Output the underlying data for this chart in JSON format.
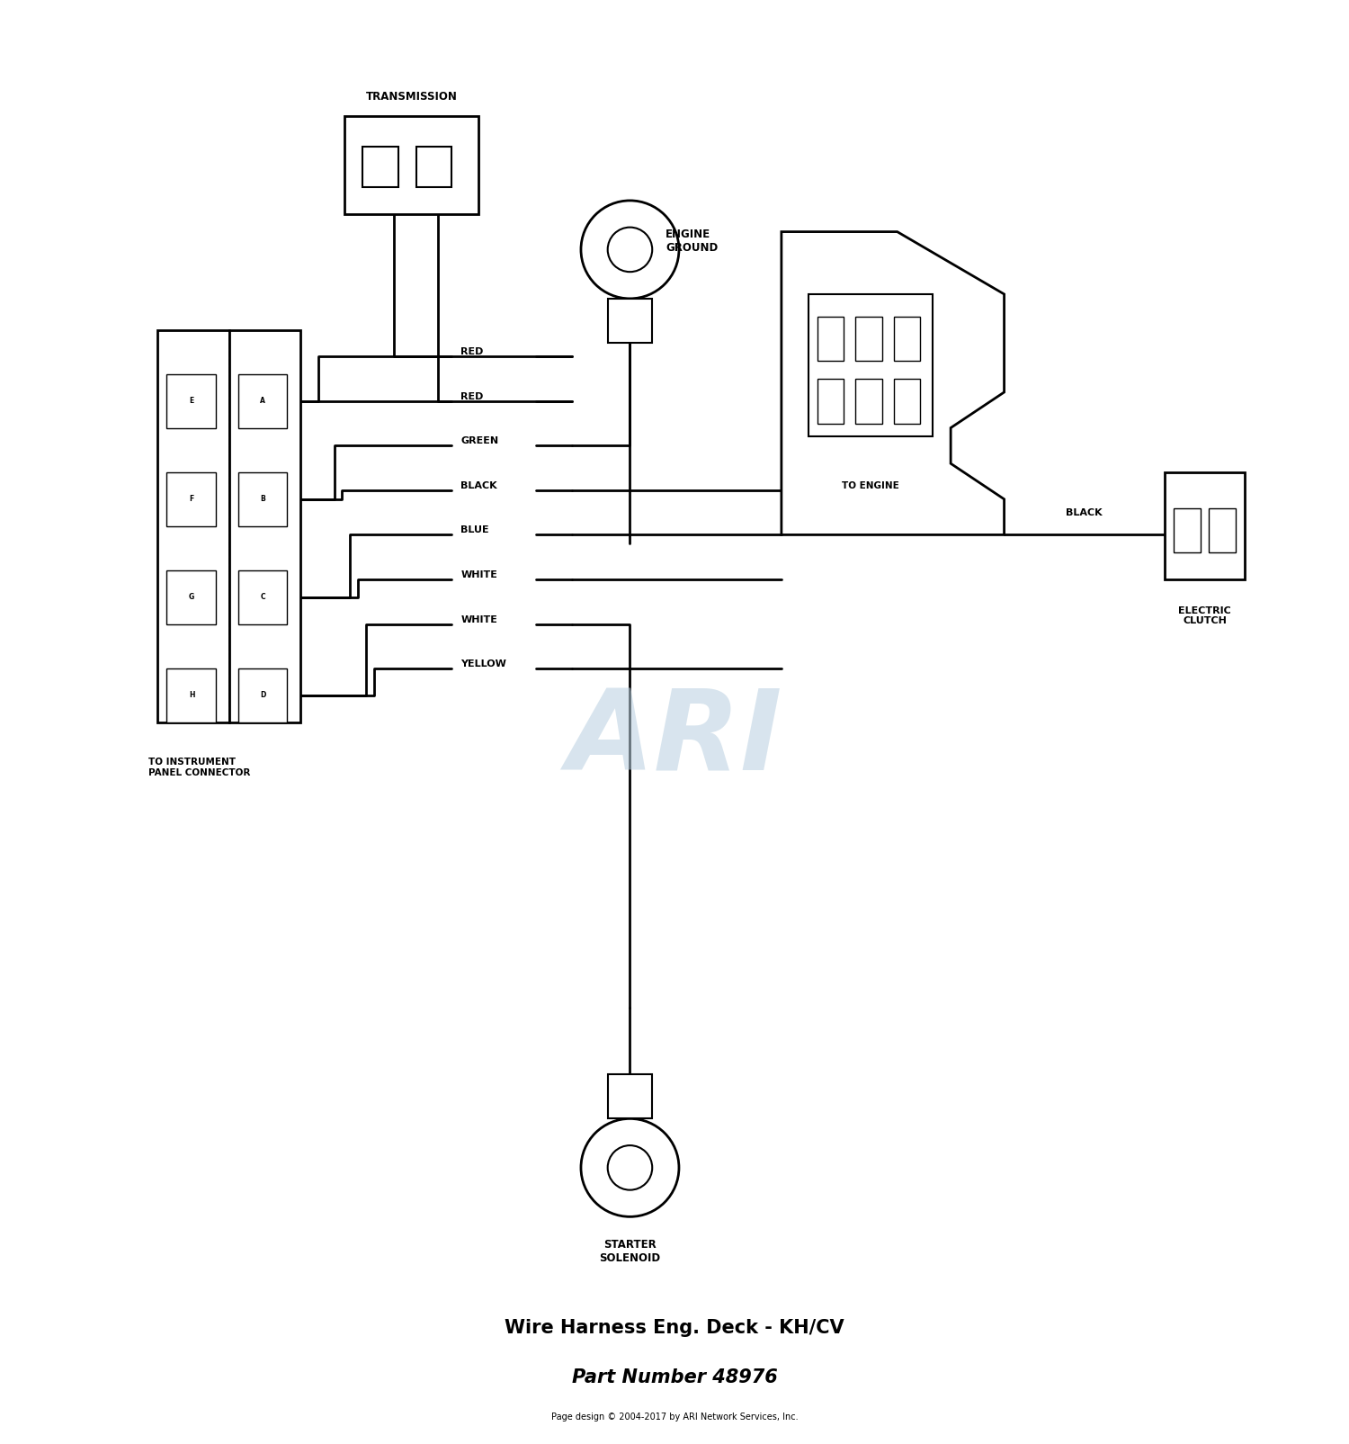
{
  "title": "Wire Harness Eng. Deck - KH/CV",
  "part_number": "Part Number 48976",
  "footer": "Page design © 2004-2017 by ARI Network Services, Inc.",
  "bg_color": "#ffffff",
  "line_color": "#000000",
  "wire_labels": [
    "RED",
    "RED",
    "GREEN",
    "BLACK",
    "BLUE",
    "WHITE",
    "WHITE",
    "YELLOW"
  ],
  "connector_labels_left": [
    "E",
    "F",
    "G",
    "H"
  ],
  "connector_labels_right": [
    "A",
    "B",
    "C",
    "D"
  ],
  "connector_text": "TO INSTRUMENT\nPANEL CONNECTOR",
  "transmission_text": "TRANSMISSION",
  "engine_ground_text": "ENGINE\nGROUND",
  "to_engine_text": "TO ENGINE",
  "electric_clutch_text": "ELECTRIC\nCLUTCH",
  "starter_solenoid_text": "STARTER\nSOLENOID",
  "black_wire_label": "BLACK",
  "watermark_text": "ARI",
  "watermark_color": "#b8cfe0"
}
